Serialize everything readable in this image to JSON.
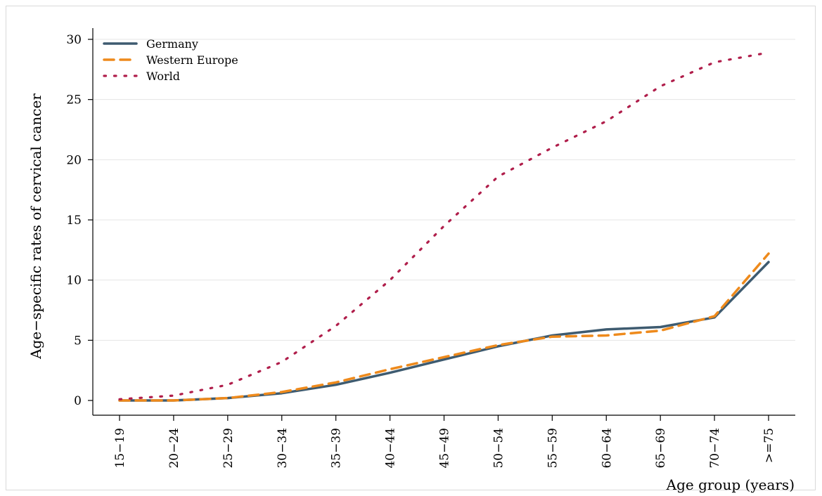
{
  "chart_data": {
    "type": "line",
    "title": "",
    "xlabel": "Age group (years)",
    "ylabel": "Age−specific rates of cervical cancer",
    "categories": [
      "15−19",
      "20−24",
      "25−29",
      "30−34",
      "35−39",
      "40−44",
      "45−49",
      "50−54",
      "55−59",
      "60−64",
      "65−69",
      "70−74",
      ">=75"
    ],
    "ylim": [
      0,
      30
    ],
    "yticks": [
      0,
      5,
      10,
      15,
      20,
      25,
      30
    ],
    "grid": true,
    "legend_position": "top-left",
    "series": [
      {
        "name": "Germany",
        "color": "#3e5b70",
        "style": "solid",
        "values": [
          0.0,
          0.0,
          0.2,
          0.6,
          1.3,
          2.3,
          3.4,
          4.5,
          5.4,
          5.9,
          6.1,
          6.9,
          11.5
        ]
      },
      {
        "name": "Western Europe",
        "color": "#ee8a1c",
        "style": "dashed",
        "values": [
          0.0,
          0.0,
          0.2,
          0.7,
          1.5,
          2.6,
          3.6,
          4.6,
          5.3,
          5.4,
          5.8,
          7.0,
          12.2
        ]
      },
      {
        "name": "World",
        "color": "#b01e4b",
        "style": "dotted",
        "values": [
          0.1,
          0.4,
          1.3,
          3.2,
          6.2,
          10.0,
          14.5,
          18.6,
          21.0,
          23.2,
          26.1,
          28.1,
          28.9
        ]
      }
    ]
  }
}
